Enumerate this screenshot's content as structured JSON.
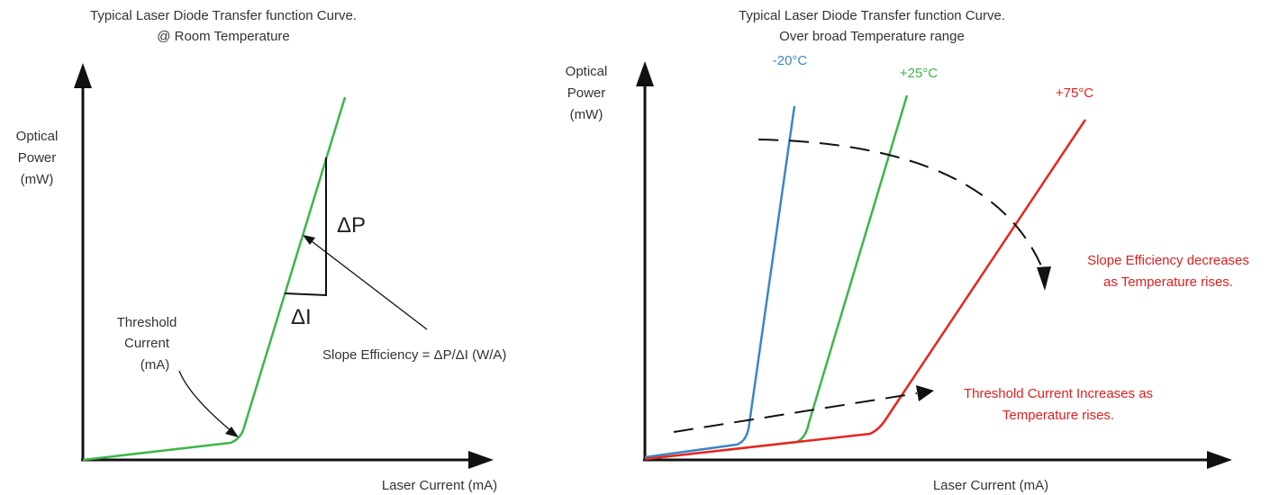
{
  "left_panel": {
    "title_line1": "Typical Laser Diode Transfer function Curve.",
    "title_line2": "@ Room Temperature",
    "y_label": [
      "Optical",
      "Power",
      "(mW)"
    ],
    "x_label": "Laser Current (mA)",
    "threshold_label": [
      "Threshold",
      "Current",
      "(mA)"
    ],
    "delta_p": "ΔP",
    "delta_i": "ΔI",
    "slope_label": "Slope Efficiency = ΔP/ΔI (W/A)",
    "curve_color": "#3db54a"
  },
  "right_panel": {
    "title_line1": "Typical Laser Diode Transfer function Curve.",
    "title_line2": "Over broad Temperature range",
    "y_label": [
      "Optical",
      "Power",
      "(mW)"
    ],
    "x_label": "Laser Current (mA)",
    "curves": [
      {
        "label": "-20°C",
        "color": "#3a86c8"
      },
      {
        "label": "+25°C",
        "color": "#3db54a"
      },
      {
        "label": "+75°C",
        "color": "#ee2222"
      }
    ],
    "slope_note": [
      "Slope Efficiency decreases",
      "as Temperature rises."
    ],
    "threshold_note": [
      "Threshold Current Increases as",
      "Temperature rises."
    ],
    "note_color": "#e02020"
  }
}
